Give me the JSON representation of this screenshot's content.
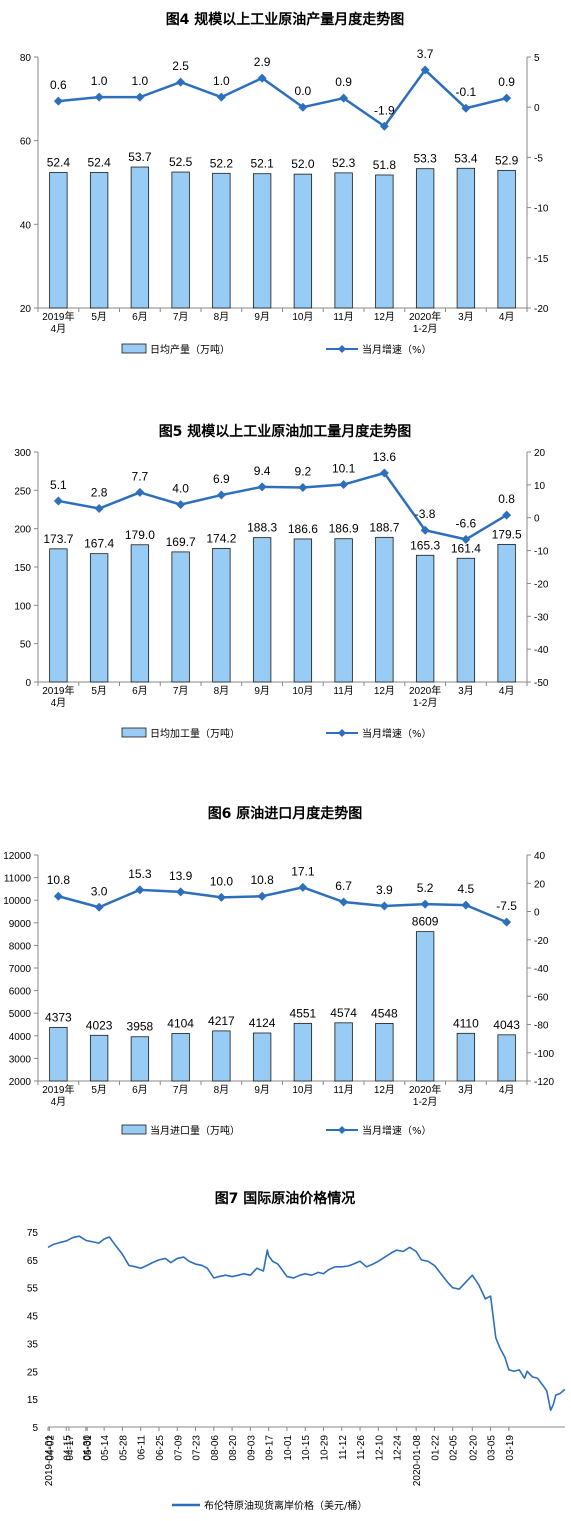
{
  "chart_data": [
    {
      "type": "bar",
      "title": "图4  规模以上工业原油产量月度走势图",
      "categories": [
        "2019年\n4月",
        "5月",
        "6月",
        "7月",
        "8月",
        "9月",
        "10月",
        "11月",
        "12月",
        "2020年\n1-2月",
        "3月",
        "4月"
      ],
      "series": [
        {
          "name": "日均产量（万吨）",
          "type": "bar",
          "axis": "left",
          "values": [
            52.4,
            52.4,
            53.7,
            52.5,
            52.2,
            52.1,
            52.0,
            52.3,
            51.8,
            53.3,
            53.4,
            52.9
          ],
          "labels": [
            "52.4",
            "52.4",
            "53.7",
            "52.5",
            "52.2",
            "52.1",
            "52.0",
            "52.3",
            "51.8",
            "53.3",
            "53.4",
            "52.9"
          ]
        },
        {
          "name": "当月增速（%）",
          "type": "line",
          "axis": "right",
          "values": [
            0.6,
            1.0,
            1.0,
            2.5,
            1.0,
            2.9,
            0.0,
            0.9,
            -1.9,
            3.7,
            -0.1,
            0.9
          ],
          "labels": [
            "0.6",
            "1.0",
            "1.0",
            "2.5",
            "1.0",
            "2.9",
            "0.0",
            "0.9",
            "-1.9",
            "3.7",
            "-0.1",
            "0.9"
          ]
        }
      ],
      "ylim_left": [
        20,
        80
      ],
      "yticks_left": [
        "20",
        "40",
        "60",
        "80"
      ],
      "ylim_right": [
        -20,
        5
      ],
      "yticks_right": [
        "-20",
        "-15",
        "-10",
        "-5",
        "0",
        "5"
      ],
      "legend": "bottom",
      "colors": {
        "bar": "#99ccf5",
        "bar_stroke": "#1a1a1a",
        "line": "#2e6fbd"
      }
    },
    {
      "type": "bar",
      "title": "图5  规模以上工业原油加工量月度走势图",
      "categories": [
        "2019年\n4月",
        "5月",
        "6月",
        "7月",
        "8月",
        "9月",
        "10月",
        "11月",
        "12月",
        "2020年\n1-2月",
        "3月",
        "4月"
      ],
      "series": [
        {
          "name": "日均加工量（万吨）",
          "type": "bar",
          "axis": "left",
          "values": [
            173.7,
            167.4,
            179.0,
            169.7,
            174.2,
            188.3,
            186.6,
            186.9,
            188.7,
            165.3,
            161.4,
            179.5
          ],
          "labels": [
            "173.7",
            "167.4",
            "179.0",
            "169.7",
            "174.2",
            "188.3",
            "186.6",
            "186.9",
            "188.7",
            "165.3",
            "161.4",
            "179.5"
          ]
        },
        {
          "name": "当月增速（%）",
          "type": "line",
          "axis": "right",
          "values": [
            5.1,
            2.8,
            7.7,
            4.0,
            6.9,
            9.4,
            9.2,
            10.1,
            13.6,
            -3.8,
            -6.6,
            0.8
          ],
          "labels": [
            "5.1",
            "2.8",
            "7.7",
            "4.0",
            "6.9",
            "9.4",
            "9.2",
            "10.1",
            "13.6",
            "-3.8",
            "-6.6",
            "0.8"
          ]
        }
      ],
      "ylim_left": [
        0,
        300
      ],
      "yticks_left": [
        "0",
        "50",
        "100",
        "150",
        "200",
        "250",
        "300"
      ],
      "ylim_right": [
        -50,
        20
      ],
      "yticks_right": [
        "-50",
        "-40",
        "-30",
        "-20",
        "-10",
        "0",
        "10",
        "20"
      ],
      "legend": "bottom",
      "colors": {
        "bar": "#99ccf5",
        "bar_stroke": "#1a1a1a",
        "line": "#2e6fbd"
      }
    },
    {
      "type": "bar",
      "title": "图6  原油进口月度走势图",
      "categories": [
        "2019年\n4月",
        "5月",
        "6月",
        "7月",
        "8月",
        "9月",
        "10月",
        "11月",
        "12月",
        "2020年\n1-2月",
        "3月",
        "4月"
      ],
      "series": [
        {
          "name": "当月进口量（万吨）",
          "type": "bar",
          "axis": "left",
          "values": [
            4373,
            4023,
            3958,
            4104,
            4217,
            4124,
            4551,
            4574,
            4548,
            8609,
            4110,
            4043
          ],
          "labels": [
            "4373",
            "4023",
            "3958",
            "4104",
            "4217",
            "4124",
            "4551",
            "4574",
            "4548",
            "8609",
            "4110",
            "4043"
          ]
        },
        {
          "name": "当月增速（%）",
          "type": "line",
          "axis": "right",
          "values": [
            10.8,
            3.0,
            15.3,
            13.9,
            10.0,
            10.8,
            17.1,
            6.7,
            3.9,
            5.2,
            4.5,
            -7.5
          ],
          "labels": [
            "10.8",
            "3.0",
            "15.3",
            "13.9",
            "10.0",
            "10.8",
            "17.1",
            "6.7",
            "3.9",
            "5.2",
            "4.5",
            "-7.5"
          ]
        }
      ],
      "ylim_left": [
        2000,
        12000
      ],
      "yticks_left": [
        "2000",
        "3000",
        "4000",
        "5000",
        "6000",
        "7000",
        "8000",
        "9000",
        "10000",
        "11000",
        "12000"
      ],
      "ylim_right": [
        -120,
        40
      ],
      "yticks_right": [
        "-120",
        "-100",
        "-80",
        "-60",
        "-40",
        "-20",
        "0",
        "20",
        "40"
      ],
      "legend": "bottom",
      "colors": {
        "bar": "#99ccf5",
        "bar_stroke": "#1a1a1a",
        "line": "#2e6fbd"
      }
    },
    {
      "type": "line",
      "title": "图7  国际原油价格情况",
      "x_start": "2019-04-01",
      "x_end": "2020-05-01",
      "x_ticks": [
        "2019-04-01",
        "04-15",
        "04-30",
        "05-14",
        "05-28",
        "06-11",
        "06-25",
        "07-09",
        "07-23",
        "08-06",
        "08-20",
        "09-03",
        "09-17",
        "10-01",
        "10-15",
        "10-29",
        "11-12",
        "11-26",
        "12-10",
        "12-24",
        "2020-01-08",
        "01-22",
        "02-05",
        "02-20",
        "03-05",
        "03-19",
        "04-02",
        "04-17",
        "05-01"
      ],
      "ylim": [
        5,
        75
      ],
      "yticks": [
        "5",
        "15",
        "25",
        "35",
        "45",
        "55",
        "65",
        "75"
      ],
      "series": [
        {
          "name": "布伦特原油现货离岸价格（美元/桶）",
          "x": [
            "2019-04-01",
            "2019-04-05",
            "2019-04-10",
            "2019-04-15",
            "2019-04-20",
            "2019-04-25",
            "2019-04-30",
            "2019-05-05",
            "2019-05-10",
            "2019-05-14",
            "2019-05-18",
            "2019-05-23",
            "2019-05-28",
            "2019-06-02",
            "2019-06-07",
            "2019-06-11",
            "2019-06-15",
            "2019-06-20",
            "2019-06-25",
            "2019-06-30",
            "2019-07-04",
            "2019-07-09",
            "2019-07-14",
            "2019-07-18",
            "2019-07-23",
            "2019-07-28",
            "2019-08-01",
            "2019-08-06",
            "2019-08-10",
            "2019-08-15",
            "2019-08-20",
            "2019-08-25",
            "2019-08-29",
            "2019-09-03",
            "2019-09-08",
            "2019-09-13",
            "2019-09-16",
            "2019-09-17",
            "2019-09-20",
            "2019-09-24",
            "2019-09-28",
            "2019-10-01",
            "2019-10-06",
            "2019-10-11",
            "2019-10-15",
            "2019-10-20",
            "2019-10-25",
            "2019-10-29",
            "2019-11-02",
            "2019-11-07",
            "2019-11-12",
            "2019-11-17",
            "2019-11-21",
            "2019-11-26",
            "2019-12-01",
            "2019-12-06",
            "2019-12-10",
            "2019-12-15",
            "2019-12-20",
            "2019-12-24",
            "2019-12-29",
            "2020-01-03",
            "2020-01-08",
            "2020-01-12",
            "2020-01-17",
            "2020-01-22",
            "2020-01-27",
            "2020-02-01",
            "2020-02-05",
            "2020-02-10",
            "2020-02-15",
            "2020-02-20",
            "2020-02-25",
            "2020-03-01",
            "2020-03-05",
            "2020-03-09",
            "2020-03-12",
            "2020-03-16",
            "2020-03-19",
            "2020-03-23",
            "2020-03-27",
            "2020-03-31",
            "2020-04-02",
            "2020-04-06",
            "2020-04-10",
            "2020-04-14",
            "2020-04-17",
            "2020-04-20",
            "2020-04-22",
            "2020-04-24",
            "2020-04-27",
            "2020-05-01"
          ],
          "values": [
            69.5,
            70.5,
            71.2,
            71.8,
            73.0,
            73.5,
            72.0,
            71.5,
            71.0,
            72.5,
            73.2,
            70.0,
            67.0,
            63.0,
            62.5,
            62.0,
            62.8,
            64.0,
            65.0,
            65.5,
            64.0,
            65.5,
            66.0,
            64.5,
            63.5,
            63.0,
            62.0,
            58.5,
            59.0,
            59.5,
            59.0,
            59.5,
            60.0,
            59.5,
            62.0,
            61.0,
            68.5,
            66.5,
            64.5,
            63.5,
            61.0,
            59.0,
            58.5,
            59.5,
            60.0,
            59.5,
            60.5,
            60.0,
            61.5,
            62.5,
            62.5,
            62.8,
            63.5,
            64.5,
            62.5,
            63.5,
            64.5,
            66.0,
            67.5,
            68.5,
            68.0,
            69.5,
            68.0,
            65.0,
            64.5,
            63.0,
            60.0,
            57.0,
            55.0,
            54.5,
            57.0,
            59.5,
            56.0,
            51.0,
            52.0,
            37.0,
            33.5,
            30.0,
            25.5,
            25.0,
            25.5,
            22.5,
            25.0,
            23.0,
            22.5,
            20.0,
            18.0,
            11.0,
            13.0,
            16.5,
            17.0,
            18.5
          ]
        }
      ],
      "legend": "bottom",
      "colors": {
        "line": "#2e6fbd"
      }
    }
  ]
}
